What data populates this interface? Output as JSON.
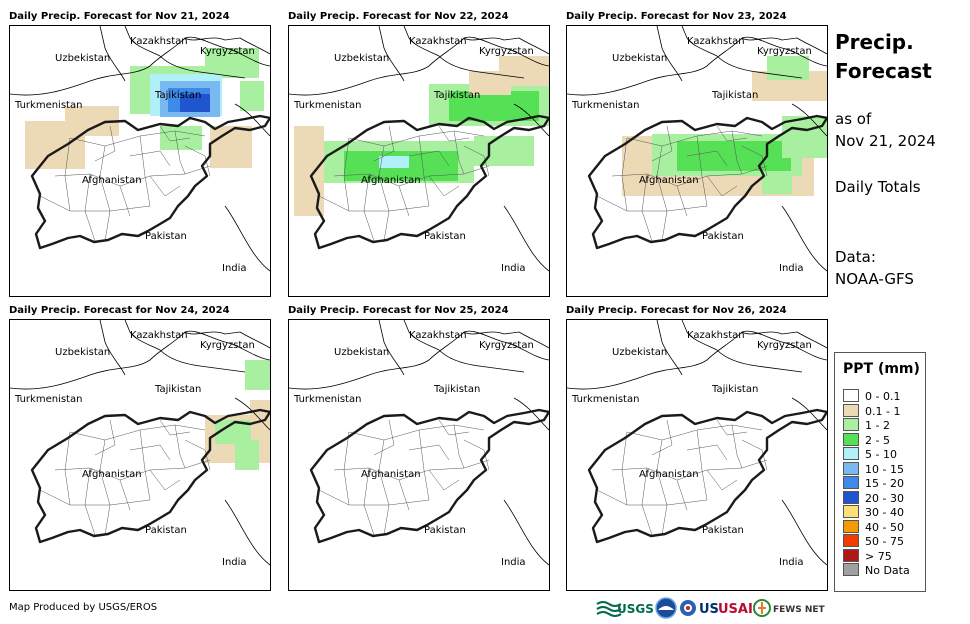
{
  "panels": [
    {
      "title": "Daily Precip. Forecast for Nov 21, 2024"
    },
    {
      "title": "Daily Precip. Forecast for Nov 22, 2024"
    },
    {
      "title": "Daily Precip. Forecast for Nov 23, 2024"
    },
    {
      "title": "Daily Precip. Forecast for Nov 24, 2024"
    },
    {
      "title": "Daily Precip. Forecast for Nov 25, 2024"
    },
    {
      "title": "Daily Precip. Forecast for Nov 26, 2024"
    }
  ],
  "map_labels": {
    "kazakhstan": "Kazakhstan",
    "kyrgyzstan": "Kyrgyzstan",
    "uzbekistan": "Uzbekistan",
    "tajikistan": "Tajikistan",
    "turkmenistan": "Turkmenistan",
    "afghanistan": "Afghanistan",
    "pakistan": "Pakistan",
    "india": "India"
  },
  "sidebar": {
    "title_line1": "Precip.",
    "title_line2": "Forecast",
    "as_of_label": "as of",
    "as_of_date": "Nov 21, 2024",
    "totals": "Daily Totals",
    "data_label": "Data:",
    "data_source": "NOAA-GFS"
  },
  "legend": {
    "title": "PPT (mm)",
    "items": [
      {
        "label": "0 - 0.1",
        "color": "#ffffff"
      },
      {
        "label": "0.1 - 1",
        "color": "#ecd9b5"
      },
      {
        "label": "1 - 2",
        "color": "#a8f0a0"
      },
      {
        "label": "2 - 5",
        "color": "#55e055"
      },
      {
        "label": "5 - 10",
        "color": "#b0f0f8"
      },
      {
        "label": "10 - 15",
        "color": "#7ab8f0"
      },
      {
        "label": "15 - 20",
        "color": "#3d8ae8"
      },
      {
        "label": "20 - 30",
        "color": "#1f56d0"
      },
      {
        "label": "30 - 40",
        "color": "#fde07a"
      },
      {
        "label": "40 - 50",
        "color": "#f59a00"
      },
      {
        "label": "50 - 75",
        "color": "#f03c00"
      },
      {
        "label": "> 75",
        "color": "#b01818"
      },
      {
        "label": "No Data",
        "color": "#a0a0a0"
      }
    ]
  },
  "footer": {
    "credit": "Map Produced by USGS/EROS"
  },
  "logos": {
    "usgs": "USGS",
    "usaid": "USAID",
    "fewsnet": "FEWS NET"
  }
}
